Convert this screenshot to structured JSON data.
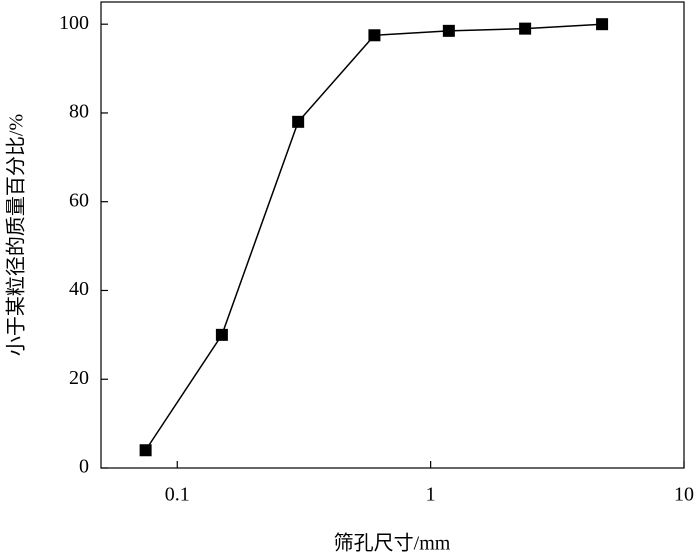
{
  "chart_data": {
    "type": "line",
    "x_label": "筛孔尺寸/mm",
    "y_label": "小于某粒径的质量百分比/%",
    "x": [
      0.075,
      0.15,
      0.3,
      0.6,
      1.18,
      2.36,
      4.75
    ],
    "series": [
      {
        "color": "#000000",
        "values": [
          4,
          30,
          78,
          97.5,
          98.5,
          99,
          100
        ]
      }
    ],
    "xlim": [
      0.05,
      10
    ],
    "x_log": true,
    "xticks": [
      0.1,
      1,
      10
    ],
    "ylim": [
      0,
      105
    ],
    "yticks": [
      0,
      20,
      40,
      60,
      80,
      100
    ],
    "grid": false
  }
}
